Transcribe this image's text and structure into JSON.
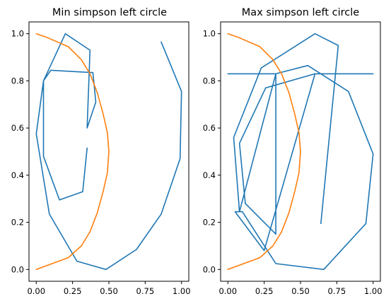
{
  "chart_data": [
    {
      "type": "line",
      "title": "Min simpson left circle",
      "xlim": [
        -0.05,
        1.05
      ],
      "ylim": [
        -0.05,
        1.05
      ],
      "xticks": [
        "0.00",
        "0.25",
        "0.50",
        "0.75",
        "1.00"
      ],
      "yticks": [
        "0.0",
        "0.2",
        "0.4",
        "0.6",
        "0.8",
        "1.0"
      ],
      "grid": false,
      "colors": [
        "#1f77b4",
        "#ff7f0e"
      ],
      "series": [
        {
          "color": "#1f77b4",
          "x": [
            0.86,
            1.0,
            0.99,
            0.86,
            0.69,
            0.48,
            0.28,
            0.09,
            0.0,
            0.05,
            0.05,
            0.2,
            0.37,
            0.35,
            0.35,
            0.41,
            0.39,
            0.1,
            0.05,
            0.05,
            0.16,
            0.32,
            0.35
          ],
          "y": [
            0.965,
            0.755,
            0.47,
            0.235,
            0.085,
            0.0,
            0.035,
            0.235,
            0.575,
            0.8,
            0.8,
            1.0,
            0.93,
            0.6,
            0.6,
            0.71,
            0.835,
            0.845,
            0.8,
            0.48,
            0.295,
            0.33,
            0.515
          ]
        },
        {
          "color": "#ff7f0e",
          "x": [
            0.0,
            0.07,
            0.22,
            0.31,
            0.37,
            0.42,
            0.46,
            0.49,
            0.5,
            0.49,
            0.46,
            0.42,
            0.37,
            0.31,
            0.22,
            0.0
          ],
          "y": [
            1.0,
            0.985,
            0.945,
            0.89,
            0.83,
            0.75,
            0.66,
            0.58,
            0.5,
            0.41,
            0.33,
            0.24,
            0.16,
            0.1,
            0.05,
            0.0
          ]
        }
      ]
    },
    {
      "type": "line",
      "title": "Max simpson left circle",
      "xlim": [
        -0.05,
        1.05
      ],
      "ylim": [
        -0.05,
        1.05
      ],
      "xticks": [
        "0.00",
        "0.25",
        "0.50",
        "0.75",
        "1.00"
      ],
      "yticks": [
        "0.0",
        "0.2",
        "0.4",
        "0.6",
        "0.8",
        "1.0"
      ],
      "grid": false,
      "colors": [
        "#1f77b4",
        "#ff7f0e"
      ],
      "series": [
        {
          "color": "#1f77b4",
          "x": [
            0.0,
            0.33,
            0.33,
            0.12,
            0.12,
            0.08,
            0.26,
            0.6,
            1.0,
            0.6,
            0.25,
            0.05,
            0.1,
            0.33,
            0.66,
            0.95,
            1.0,
            0.83,
            0.55,
            0.33,
            0.08,
            0.04,
            0.23,
            0.6,
            0.76,
            0.64
          ],
          "y": [
            0.83,
            0.83,
            0.15,
            0.28,
            0.28,
            0.535,
            0.77,
            0.83,
            0.83,
            0.83,
            0.08,
            0.245,
            0.245,
            0.025,
            0.0,
            0.195,
            0.49,
            0.755,
            0.865,
            0.83,
            0.245,
            0.56,
            0.855,
            1.0,
            0.95,
            0.195
          ]
        },
        {
          "color": "#ff7f0e",
          "x": [
            0.0,
            0.07,
            0.22,
            0.31,
            0.37,
            0.42,
            0.46,
            0.49,
            0.5,
            0.49,
            0.46,
            0.42,
            0.37,
            0.31,
            0.22,
            0.0
          ],
          "y": [
            1.0,
            0.985,
            0.945,
            0.89,
            0.83,
            0.75,
            0.66,
            0.58,
            0.5,
            0.41,
            0.33,
            0.24,
            0.16,
            0.1,
            0.05,
            0.0
          ]
        }
      ]
    }
  ]
}
